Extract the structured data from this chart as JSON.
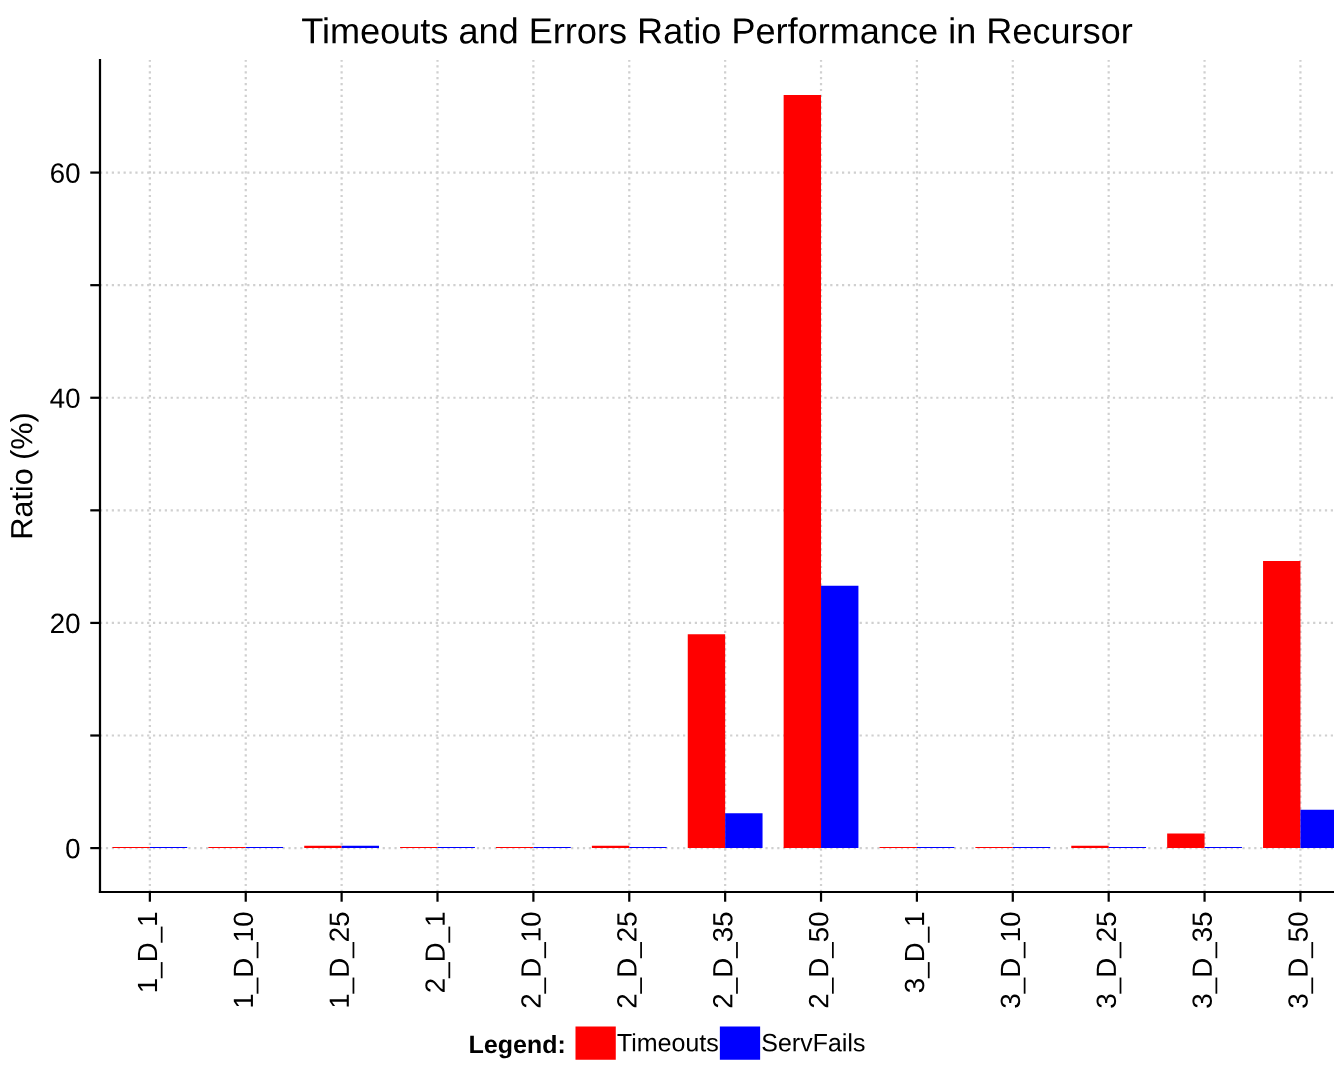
{
  "chart_data": {
    "type": "bar",
    "title": "Timeouts and Errors Ratio Performance in Recursor",
    "ylabel": "Ratio (%)",
    "legend_title": "Legend:",
    "categories": [
      "1_D_1",
      "1_D_10",
      "1_D_25",
      "2_D_1",
      "2_D_10",
      "2_D_25",
      "2_D_35",
      "2_D_50",
      "3_D_1",
      "3_D_10",
      "3_D_25",
      "3_D_35",
      "3_D_50"
    ],
    "series": [
      {
        "name": "Timeouts",
        "color": "#ff0000",
        "values": [
          0.1,
          0.1,
          0.2,
          0.1,
          0.1,
          0.2,
          19.0,
          66.9,
          0.1,
          0.1,
          0.2,
          1.3,
          25.5
        ]
      },
      {
        "name": "ServFails",
        "color": "#0000ff",
        "values": [
          0.1,
          0.1,
          0.2,
          0.1,
          0.1,
          0.1,
          3.1,
          23.3,
          0.1,
          0.1,
          0.1,
          0.1,
          3.4
        ]
      }
    ],
    "ylim": [
      -3.9,
      70
    ],
    "yticks": [
      0,
      {
        "value": 10,
        "label": null
      },
      20,
      {
        "value": 30,
        "label": null
      },
      40,
      {
        "value": 50,
        "label": null
      },
      60
    ],
    "grid": true,
    "legend": "bottom"
  }
}
